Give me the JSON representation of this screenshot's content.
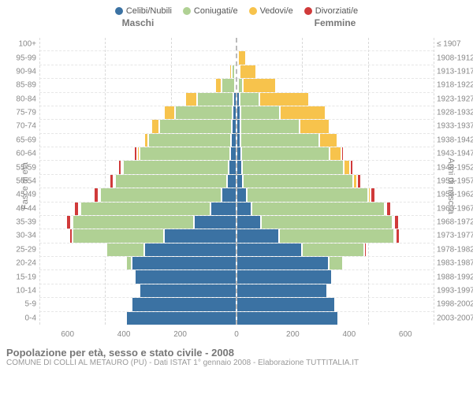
{
  "legend": {
    "items": [
      {
        "label": "Celibi/Nubili",
        "color": "#3b72a3"
      },
      {
        "label": "Coniugati/e",
        "color": "#b0d194"
      },
      {
        "label": "Vedovi/e",
        "color": "#f7c34c"
      },
      {
        "label": "Divorziati/e",
        "color": "#d03a3a"
      }
    ]
  },
  "axes": {
    "left_gender": "Maschi",
    "right_gender": "Femmine",
    "left_title": "Fasce di età",
    "right_title": "Anni di nascita",
    "x_ticks": [
      600,
      400,
      200,
      0,
      200,
      400,
      600
    ],
    "x_max": 600
  },
  "colors": {
    "celibi": "#3b72a3",
    "coniugati": "#b0d194",
    "vedovi": "#f7c34c",
    "divorziati": "#d03a3a",
    "grid": "#d9d9d9",
    "background": "#ffffff",
    "label": "#888888"
  },
  "rows": [
    {
      "age": "100+",
      "birth": "≤ 1907",
      "m": {
        "c": 0,
        "m": 0,
        "w": 2,
        "d": 0
      },
      "f": {
        "c": 0,
        "m": 0,
        "w": 5,
        "d": 0
      }
    },
    {
      "age": "95-99",
      "birth": "1908-1912",
      "m": {
        "c": 2,
        "m": 2,
        "w": 3,
        "d": 0
      },
      "f": {
        "c": 2,
        "m": 0,
        "w": 25,
        "d": 0
      }
    },
    {
      "age": "90-94",
      "birth": "1913-1917",
      "m": {
        "c": 3,
        "m": 10,
        "w": 8,
        "d": 0
      },
      "f": {
        "c": 3,
        "m": 3,
        "w": 50,
        "d": 0
      }
    },
    {
      "age": "85-89",
      "birth": "1918-1922",
      "m": {
        "c": 5,
        "m": 40,
        "w": 20,
        "d": 0
      },
      "f": {
        "c": 5,
        "m": 15,
        "w": 100,
        "d": 0
      }
    },
    {
      "age": "80-84",
      "birth": "1923-1927",
      "m": {
        "c": 10,
        "m": 110,
        "w": 35,
        "d": 0
      },
      "f": {
        "c": 10,
        "m": 60,
        "w": 150,
        "d": 0
      }
    },
    {
      "age": "75-79",
      "birth": "1928-1932",
      "m": {
        "c": 12,
        "m": 175,
        "w": 35,
        "d": 0
      },
      "f": {
        "c": 12,
        "m": 120,
        "w": 140,
        "d": 0
      }
    },
    {
      "age": "70-74",
      "birth": "1933-1937",
      "m": {
        "c": 15,
        "m": 220,
        "w": 25,
        "d": 3
      },
      "f": {
        "c": 12,
        "m": 180,
        "w": 90,
        "d": 3
      }
    },
    {
      "age": "65-69",
      "birth": "1938-1942",
      "m": {
        "c": 18,
        "m": 250,
        "w": 12,
        "d": 5
      },
      "f": {
        "c": 12,
        "m": 240,
        "w": 55,
        "d": 6
      }
    },
    {
      "age": "60-64",
      "birth": "1943-1947",
      "m": {
        "c": 20,
        "m": 275,
        "w": 8,
        "d": 8
      },
      "f": {
        "c": 14,
        "m": 270,
        "w": 35,
        "d": 8
      }
    },
    {
      "age": "55-59",
      "birth": "1948-1952",
      "m": {
        "c": 25,
        "m": 320,
        "w": 5,
        "d": 10
      },
      "f": {
        "c": 16,
        "m": 310,
        "w": 20,
        "d": 10
      }
    },
    {
      "age": "50-54",
      "birth": "1953-1957",
      "m": {
        "c": 30,
        "m": 340,
        "w": 3,
        "d": 12
      },
      "f": {
        "c": 20,
        "m": 335,
        "w": 12,
        "d": 12
      }
    },
    {
      "age": "45-49",
      "birth": "1958-1962",
      "m": {
        "c": 45,
        "m": 370,
        "w": 2,
        "d": 14
      },
      "f": {
        "c": 30,
        "m": 370,
        "w": 8,
        "d": 15
      }
    },
    {
      "age": "40-44",
      "birth": "1963-1967",
      "m": {
        "c": 80,
        "m": 395,
        "w": 2,
        "d": 15
      },
      "f": {
        "c": 45,
        "m": 405,
        "w": 5,
        "d": 16
      }
    },
    {
      "age": "35-39",
      "birth": "1968-1972",
      "m": {
        "c": 130,
        "m": 370,
        "w": 1,
        "d": 13
      },
      "f": {
        "c": 75,
        "m": 400,
        "w": 3,
        "d": 14
      }
    },
    {
      "age": "30-34",
      "birth": "1973-1977",
      "m": {
        "c": 220,
        "m": 280,
        "w": 0,
        "d": 10
      },
      "f": {
        "c": 130,
        "m": 350,
        "w": 2,
        "d": 12
      }
    },
    {
      "age": "25-29",
      "birth": "1978-1982",
      "m": {
        "c": 280,
        "m": 115,
        "w": 0,
        "d": 4
      },
      "f": {
        "c": 200,
        "m": 190,
        "w": 0,
        "d": 5
      }
    },
    {
      "age": "20-24",
      "birth": "1983-1987",
      "m": {
        "c": 320,
        "m": 15,
        "w": 0,
        "d": 0
      },
      "f": {
        "c": 280,
        "m": 45,
        "w": 0,
        "d": 1
      }
    },
    {
      "age": "15-19",
      "birth": "1988-1992",
      "m": {
        "c": 310,
        "m": 0,
        "w": 0,
        "d": 0
      },
      "f": {
        "c": 290,
        "m": 2,
        "w": 0,
        "d": 0
      }
    },
    {
      "age": "10-14",
      "birth": "1993-1997",
      "m": {
        "c": 295,
        "m": 0,
        "w": 0,
        "d": 0
      },
      "f": {
        "c": 275,
        "m": 0,
        "w": 0,
        "d": 0
      }
    },
    {
      "age": "5-9",
      "birth": "1998-2002",
      "m": {
        "c": 320,
        "m": 0,
        "w": 0,
        "d": 0
      },
      "f": {
        "c": 300,
        "m": 0,
        "w": 0,
        "d": 0
      }
    },
    {
      "age": "0-4",
      "birth": "2003-2007",
      "m": {
        "c": 335,
        "m": 0,
        "w": 0,
        "d": 0
      },
      "f": {
        "c": 310,
        "m": 0,
        "w": 0,
        "d": 0
      }
    }
  ],
  "footer": {
    "title": "Popolazione per età, sesso e stato civile - 2008",
    "subtitle": "COMUNE DI COLLI AL METAURO (PU) - Dati ISTAT 1° gennaio 2008 - Elaborazione TUTTITALIA.IT"
  }
}
